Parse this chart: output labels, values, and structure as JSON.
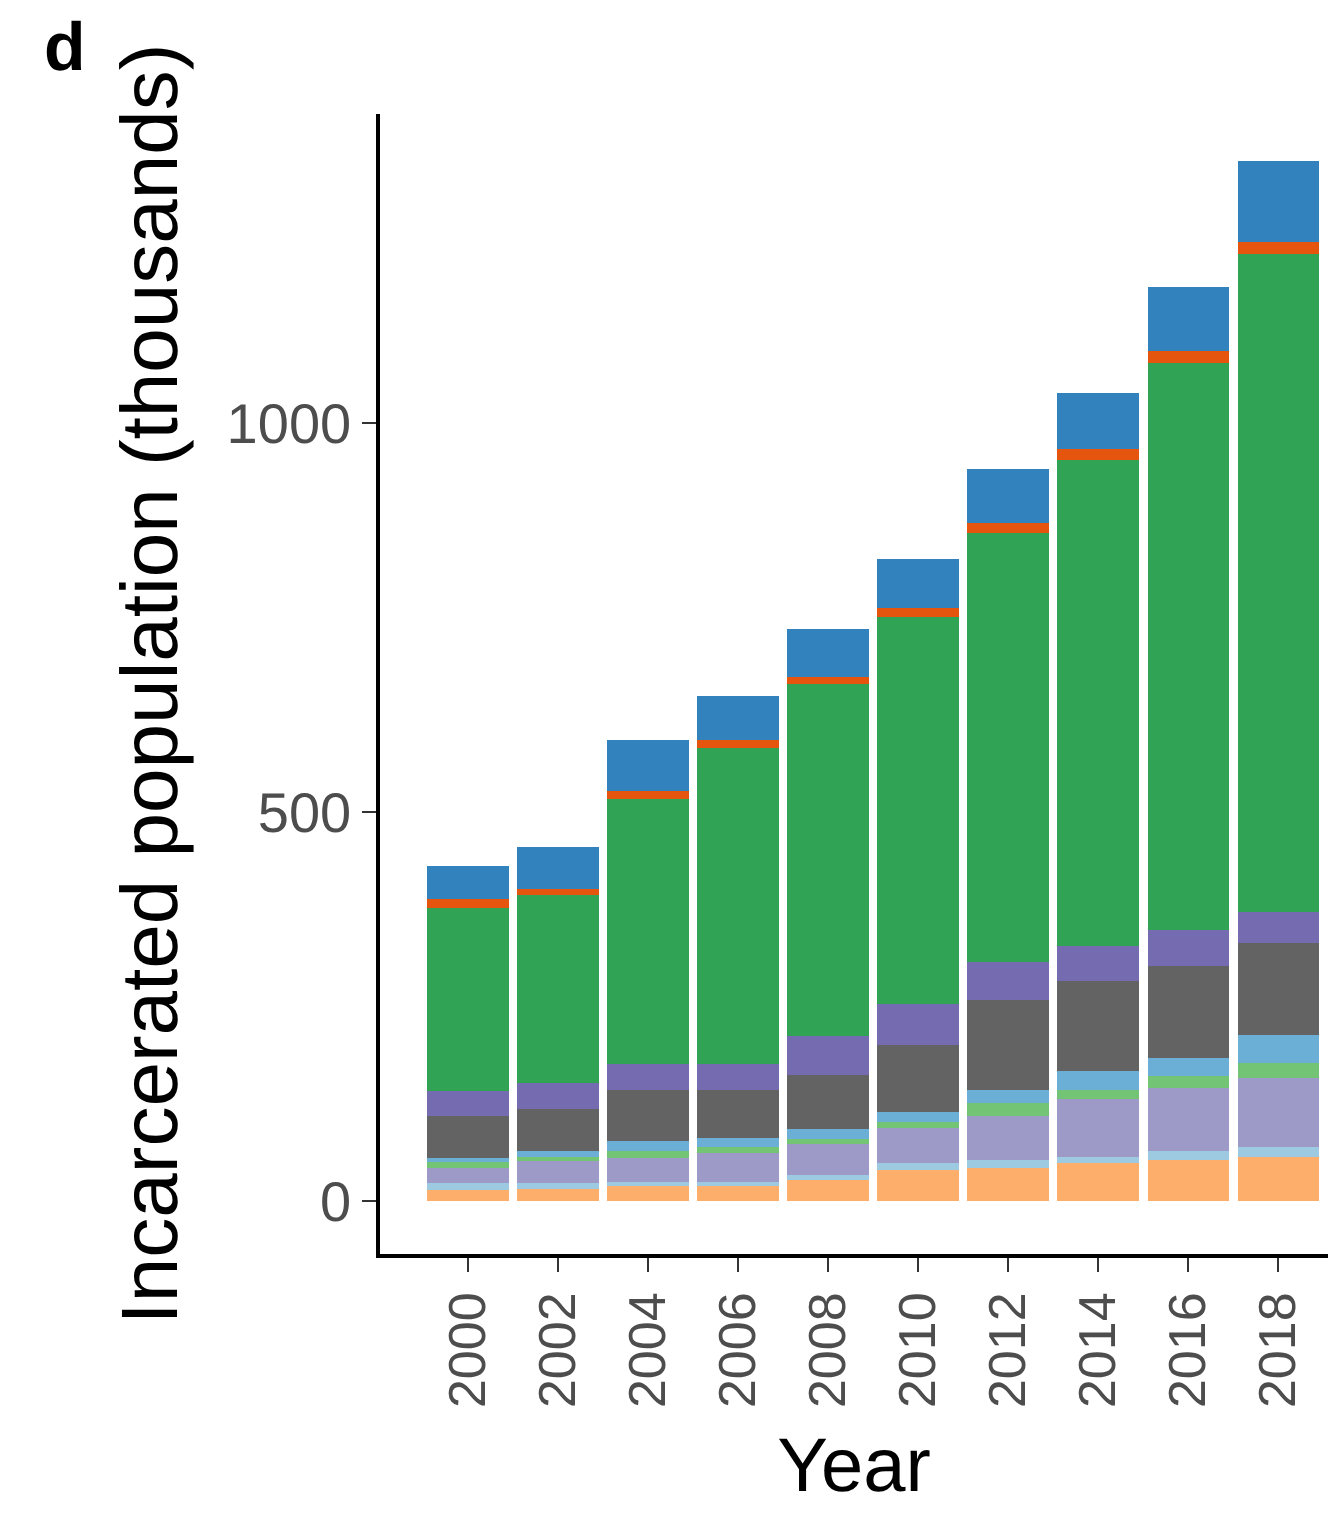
{
  "chart_data": {
    "type": "bar",
    "title": "d",
    "xlabel": "Year",
    "ylabel": "Incarcerated population (thousands)",
    "categories": [
      "2000",
      "2002",
      "2004",
      "2006",
      "2008",
      "2010",
      "2012",
      "2014",
      "2016",
      "2018"
    ],
    "stacked": true,
    "series": [
      {
        "color": "#fdae6b",
        "values": [
          14,
          16,
          19,
          19,
          27,
          40,
          43,
          49,
          53,
          57
        ]
      },
      {
        "color": "#9ecae1",
        "values": [
          9,
          7,
          6,
          6,
          6,
          9,
          10,
          8,
          11,
          12
        ]
      },
      {
        "color": "#9e9ac8",
        "values": [
          19,
          28,
          31,
          37,
          40,
          45,
          56,
          74,
          81,
          89
        ]
      },
      {
        "color": "#74c476",
        "values": [
          8,
          6,
          8,
          8,
          7,
          8,
          17,
          12,
          16,
          20
        ]
      },
      {
        "color": "#6baed6",
        "values": [
          6,
          7,
          13,
          11,
          13,
          13,
          17,
          24,
          23,
          36
        ]
      },
      {
        "color": "#636363",
        "values": [
          53,
          54,
          66,
          62,
          69,
          86,
          115,
          116,
          118,
          118
        ]
      },
      {
        "color": "#756bb1",
        "values": [
          33,
          34,
          33,
          33,
          50,
          52,
          49,
          45,
          46,
          39
        ]
      },
      {
        "color": "#31a354",
        "values": [
          235,
          242,
          341,
          406,
          452,
          498,
          552,
          625,
          729,
          846
        ]
      },
      {
        "color": "#e6550d",
        "values": [
          11,
          7,
          10,
          11,
          10,
          11,
          12,
          14,
          16,
          16
        ]
      },
      {
        "color": "#3182bd",
        "values": [
          43,
          54,
          65,
          56,
          61,
          63,
          70,
          72,
          82,
          104
        ]
      }
    ],
    "ylim": [
      -68,
      1397
    ],
    "yticks": [
      0,
      500,
      1000
    ]
  }
}
